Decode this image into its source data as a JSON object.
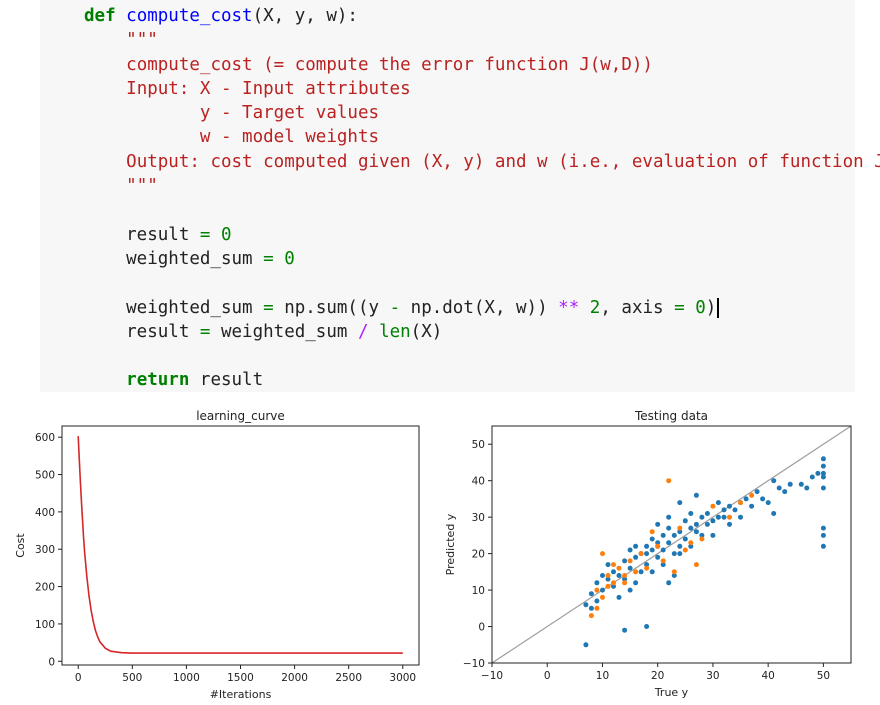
{
  "code": {
    "lines": [
      [
        {
          "t": "def",
          "c": "kw"
        },
        {
          "t": " "
        },
        {
          "t": "compute_cost",
          "c": "fn"
        },
        {
          "t": "(X, y, w):"
        }
      ],
      [
        {
          "t": "    "
        },
        {
          "t": "\"\"\"",
          "c": "str"
        }
      ],
      [
        {
          "t": "    "
        },
        {
          "t": "compute_cost (= compute the error function J(w,D))",
          "c": "str"
        }
      ],
      [
        {
          "t": "    "
        },
        {
          "t": "Input: X - Input attributes",
          "c": "str"
        }
      ],
      [
        {
          "t": "           "
        },
        {
          "t": "y - Target values",
          "c": "str"
        }
      ],
      [
        {
          "t": "           "
        },
        {
          "t": "w - model weights",
          "c": "str"
        }
      ],
      [
        {
          "t": "    "
        },
        {
          "t": "Output: cost computed given (X, y) and w (i.e., evaluation of function J())",
          "c": "str"
        }
      ],
      [
        {
          "t": "    "
        },
        {
          "t": "\"\"\"",
          "c": "str"
        }
      ],
      [
        {
          "t": ""
        }
      ],
      [
        {
          "t": "    result "
        },
        {
          "t": "=",
          "c": "opg"
        },
        {
          "t": " "
        },
        {
          "t": "0",
          "c": "num"
        }
      ],
      [
        {
          "t": "    weighted_sum "
        },
        {
          "t": "=",
          "c": "opg"
        },
        {
          "t": " "
        },
        {
          "t": "0",
          "c": "num"
        }
      ],
      [
        {
          "t": ""
        }
      ],
      [
        {
          "t": "    weighted_sum "
        },
        {
          "t": "=",
          "c": "opg"
        },
        {
          "t": " np.sum((y "
        },
        {
          "t": "-",
          "c": "opg"
        },
        {
          "t": " np.dot(X, w)) "
        },
        {
          "t": "**",
          "c": "op"
        },
        {
          "t": " "
        },
        {
          "t": "2",
          "c": "num"
        },
        {
          "t": ", axis "
        },
        {
          "t": "=",
          "c": "opg"
        },
        {
          "t": " "
        },
        {
          "t": "0",
          "c": "num"
        },
        {
          "t": ")"
        },
        {
          "cursor": true
        }
      ],
      [
        {
          "t": "    result "
        },
        {
          "t": "=",
          "c": "opg"
        },
        {
          "t": " weighted_sum "
        },
        {
          "t": "/",
          "c": "op"
        },
        {
          "t": " "
        },
        {
          "t": "len",
          "c": "bi"
        },
        {
          "t": "(X)"
        }
      ],
      [
        {
          "t": ""
        }
      ],
      [
        {
          "t": "    "
        },
        {
          "t": "return",
          "c": "kw"
        },
        {
          "t": " result"
        }
      ]
    ]
  },
  "chart_data": [
    {
      "type": "line",
      "title": "learning_curve",
      "xlabel": "#Iterations",
      "ylabel": "Cost",
      "xlim": [
        -150,
        3150
      ],
      "ylim": [
        -10,
        630
      ],
      "xticks": [
        "0",
        "500",
        "1000",
        "1500",
        "2000",
        "2500",
        "3000"
      ],
      "yticks": [
        "0",
        "100",
        "200",
        "300",
        "400",
        "500",
        "600"
      ],
      "grid": false,
      "series": [
        {
          "color": "#d62728",
          "x": [
            0,
            10,
            20,
            30,
            40,
            50,
            60,
            80,
            100,
            120,
            140,
            160,
            180,
            200,
            250,
            300,
            400,
            500,
            700,
            1000,
            1500,
            2000,
            2500,
            3000
          ],
          "y": [
            603,
            540,
            480,
            425,
            375,
            330,
            290,
            225,
            175,
            135,
            105,
            82,
            65,
            52,
            35,
            27,
            23,
            22,
            22,
            22,
            22,
            22,
            22,
            22
          ]
        }
      ]
    },
    {
      "type": "scatter",
      "title": "Testing data",
      "xlabel": "True y",
      "ylabel": "Predicted y",
      "xlim": [
        -10,
        55
      ],
      "ylim": [
        -10,
        55
      ],
      "xticks": [
        "−10",
        "0",
        "10",
        "20",
        "30",
        "40",
        "50"
      ],
      "yticks": [
        "−10",
        "0",
        "10",
        "20",
        "30",
        "40",
        "50"
      ],
      "grid": false,
      "reference_line": {
        "from": -10,
        "to": 55,
        "color": "#9e9e9e"
      },
      "series": [
        {
          "color": "#1f77b4",
          "points": [
            [
              50,
              46
            ],
            [
              50,
              44
            ],
            [
              50,
              42
            ],
            [
              50,
              41
            ],
            [
              50,
              38
            ],
            [
              50,
              27
            ],
            [
              50,
              25
            ],
            [
              50,
              22
            ],
            [
              49,
              42
            ],
            [
              48,
              41
            ],
            [
              47,
              38
            ],
            [
              46,
              39
            ],
            [
              44,
              39
            ],
            [
              43,
              37
            ],
            [
              42,
              38
            ],
            [
              41,
              40
            ],
            [
              40,
              34
            ],
            [
              39,
              35
            ],
            [
              38,
              37
            ],
            [
              36,
              35
            ],
            [
              35,
              34
            ],
            [
              34,
              32
            ],
            [
              33,
              33
            ],
            [
              32,
              32
            ],
            [
              31,
              30
            ],
            [
              30,
              29
            ],
            [
              29,
              31
            ],
            [
              28,
              30
            ],
            [
              27,
              28
            ],
            [
              27,
              26
            ],
            [
              26,
              27
            ],
            [
              25,
              29
            ],
            [
              25,
              24
            ],
            [
              24,
              26
            ],
            [
              24,
              22
            ],
            [
              23,
              25
            ],
            [
              23,
              20
            ],
            [
              22,
              27
            ],
            [
              22,
              23
            ],
            [
              21,
              21
            ],
            [
              21,
              25
            ],
            [
              20,
              22
            ],
            [
              20,
              19
            ],
            [
              19,
              24
            ],
            [
              19,
              21
            ],
            [
              18,
              17
            ],
            [
              18,
              22
            ],
            [
              17,
              20
            ],
            [
              17,
              15
            ],
            [
              16,
              19
            ],
            [
              16,
              12
            ],
            [
              15,
              16
            ],
            [
              15,
              10
            ],
            [
              14,
              18
            ],
            [
              14,
              13
            ],
            [
              13,
              14
            ],
            [
              13,
              8
            ],
            [
              12,
              15
            ],
            [
              12,
              11
            ],
            [
              11,
              13
            ],
            [
              11,
              17
            ],
            [
              10,
              10
            ],
            [
              10,
              14
            ],
            [
              9,
              12
            ],
            [
              9,
              7
            ],
            [
              8,
              9
            ],
            [
              8,
              5
            ],
            [
              7,
              6
            ],
            [
              7,
              -5
            ],
            [
              14,
              -1
            ],
            [
              18,
              0
            ],
            [
              22,
              12
            ],
            [
              23,
              14
            ],
            [
              24,
              34
            ],
            [
              27,
              36
            ],
            [
              26,
              22
            ],
            [
              21,
              17
            ],
            [
              19,
              15
            ],
            [
              20,
              28
            ],
            [
              31,
              34
            ],
            [
              33,
              28
            ],
            [
              35,
              30
            ],
            [
              37,
              33
            ],
            [
              41,
              31
            ],
            [
              29,
              28
            ],
            [
              28,
              25
            ],
            [
              30,
              25
            ],
            [
              32,
              30
            ],
            [
              26,
              31
            ],
            [
              22,
              30
            ],
            [
              20,
              23
            ],
            [
              16,
              22
            ],
            [
              15,
              21
            ],
            [
              18,
              20
            ],
            [
              24,
              20
            ]
          ]
        },
        {
          "color": "#ff7f0e",
          "points": [
            [
              22,
              40
            ],
            [
              35,
              34
            ],
            [
              30,
              33
            ],
            [
              28,
              24
            ],
            [
              24,
              27
            ],
            [
              27,
              17
            ],
            [
              21,
              18
            ],
            [
              20,
              22
            ],
            [
              19,
              26
            ],
            [
              17,
              20
            ],
            [
              16,
              15
            ],
            [
              15,
              18
            ],
            [
              14,
              12
            ],
            [
              13,
              16
            ],
            [
              12,
              12
            ],
            [
              11,
              11
            ],
            [
              10,
              8
            ],
            [
              10,
              20
            ],
            [
              9,
              10
            ],
            [
              8,
              3
            ],
            [
              9,
              5
            ],
            [
              11,
              14
            ],
            [
              25,
              21
            ],
            [
              26,
              23
            ],
            [
              23,
              15
            ],
            [
              12,
              17
            ],
            [
              14,
              14
            ],
            [
              18,
              16
            ],
            [
              33,
              30
            ],
            [
              37,
              36
            ]
          ]
        }
      ]
    }
  ]
}
